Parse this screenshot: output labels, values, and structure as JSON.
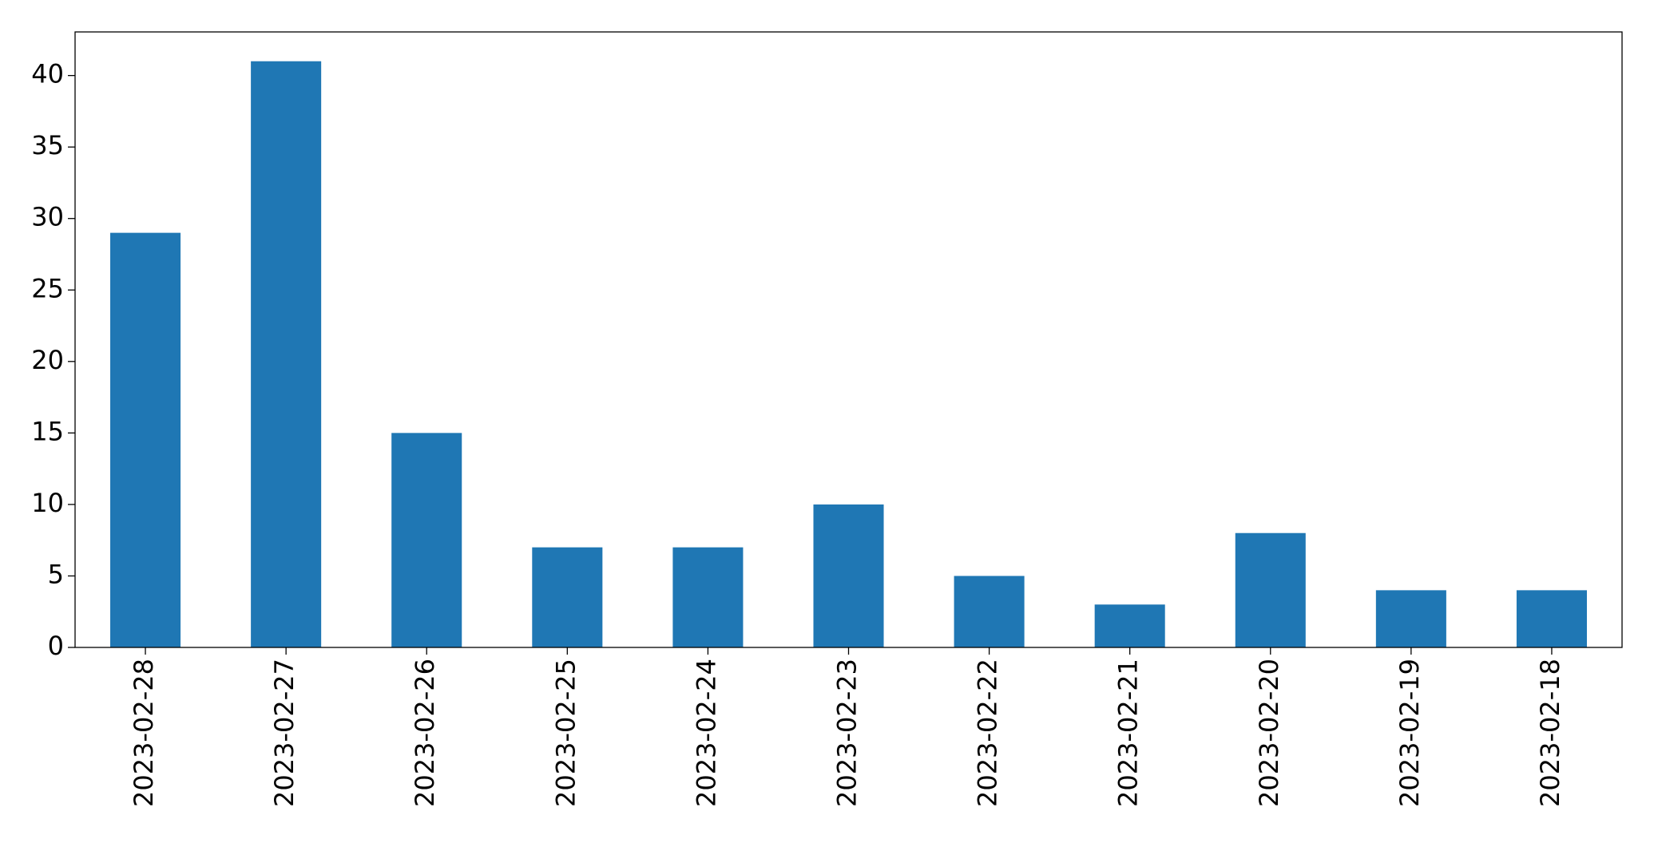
{
  "chart_data": {
    "type": "bar",
    "categories": [
      "2023-02-28",
      "2023-02-27",
      "2023-02-26",
      "2023-02-25",
      "2023-02-24",
      "2023-02-23",
      "2023-02-22",
      "2023-02-21",
      "2023-02-20",
      "2023-02-19",
      "2023-02-18"
    ],
    "values": [
      29,
      41,
      15,
      7,
      7,
      10,
      5,
      3,
      8,
      4,
      4
    ],
    "color": "#1f77b4",
    "ylim": [
      0,
      43.05
    ],
    "yticks": [
      0,
      5,
      10,
      15,
      20,
      25,
      30,
      35,
      40
    ],
    "grid": false
  }
}
